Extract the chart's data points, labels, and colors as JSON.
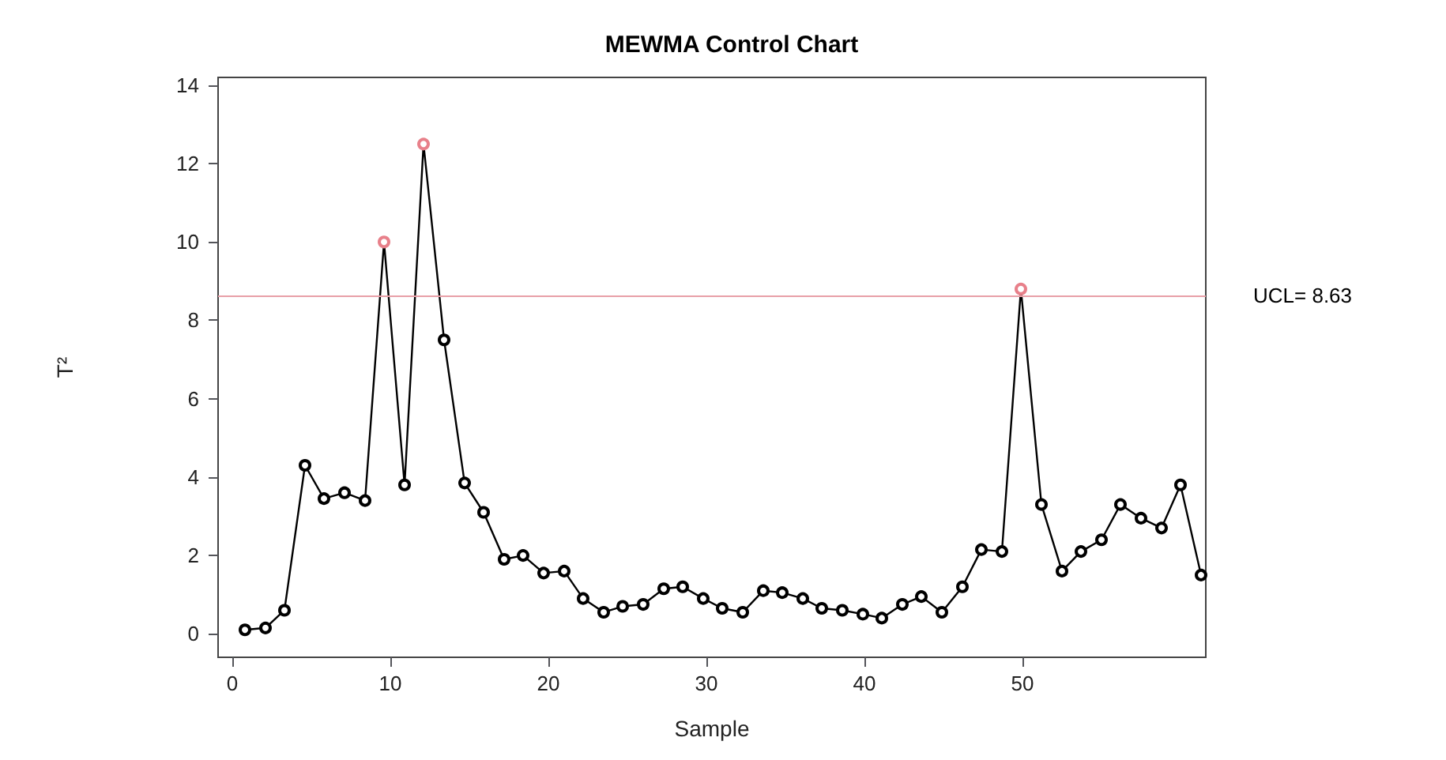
{
  "chart_data": {
    "type": "line",
    "title": "MEWMA Control Chart",
    "xlabel": "Sample",
    "ylabel": "T²",
    "x": [
      0.8,
      2.1,
      3.3,
      4.6,
      5.8,
      7.1,
      8.4,
      9.6,
      10.9,
      12.1,
      13.4,
      14.7,
      15.9,
      17.2,
      18.4,
      19.7,
      21.0,
      22.2,
      23.5,
      24.7,
      26.0,
      27.3,
      28.5,
      29.8,
      31.0,
      32.3,
      33.6,
      34.8,
      36.1,
      37.3,
      38.6,
      39.9,
      41.1,
      42.4,
      43.6,
      44.9,
      46.2,
      47.4,
      48.7,
      49.9,
      51.2,
      52.5,
      53.7,
      55.0,
      56.2,
      57.5,
      58.8,
      60.0,
      61.3
    ],
    "series": [
      {
        "color": "#000000",
        "values": [
          0.1,
          0.15,
          0.6,
          4.3,
          3.45,
          3.6,
          3.4,
          10.0,
          3.8,
          12.5,
          7.5,
          3.85,
          3.1,
          1.9,
          2.0,
          1.55,
          1.6,
          0.9,
          0.55,
          0.7,
          0.75,
          1.15,
          1.2,
          0.9,
          0.65,
          0.55,
          1.1,
          1.05,
          0.9,
          0.65,
          0.6,
          0.5,
          0.4,
          0.75,
          0.95,
          0.55,
          1.2,
          2.15,
          2.1,
          8.8,
          3.3,
          1.6,
          2.1,
          2.4,
          3.3,
          2.95,
          2.7,
          3.8,
          1.5
        ],
        "colors": [
          "#000000",
          "#000000",
          "#000000",
          "#000000",
          "#000000",
          "#000000",
          "#000000",
          "#e8808a",
          "#000000",
          "#e8808a",
          "#000000",
          "#000000",
          "#000000",
          "#000000",
          "#000000",
          "#000000",
          "#000000",
          "#000000",
          "#000000",
          "#000000",
          "#000000",
          "#000000",
          "#000000",
          "#000000",
          "#000000",
          "#000000",
          "#000000",
          "#000000",
          "#000000",
          "#000000",
          "#000000",
          "#000000",
          "#000000",
          "#000000",
          "#000000",
          "#000000",
          "#000000",
          "#000000",
          "#000000",
          "#e8808a",
          "#000000",
          "#000000",
          "#000000",
          "#000000",
          "#000000",
          "#000000",
          "#000000",
          "#000000",
          "#000000"
        ]
      }
    ],
    "xlim": [
      -0.9,
      61.6
    ],
    "xticks": [
      0,
      10,
      20,
      30,
      40,
      50
    ],
    "ylim": [
      -0.6,
      14.2
    ],
    "yticks": [
      0,
      2,
      4,
      6,
      8,
      10,
      12,
      14
    ],
    "ref_lines": [
      {
        "axis": "y",
        "value": 8.63,
        "label": "UCL= 8.63",
        "color": "#e8a0a8"
      }
    ],
    "grid": false,
    "marker": "circle",
    "line_style": "solid"
  }
}
